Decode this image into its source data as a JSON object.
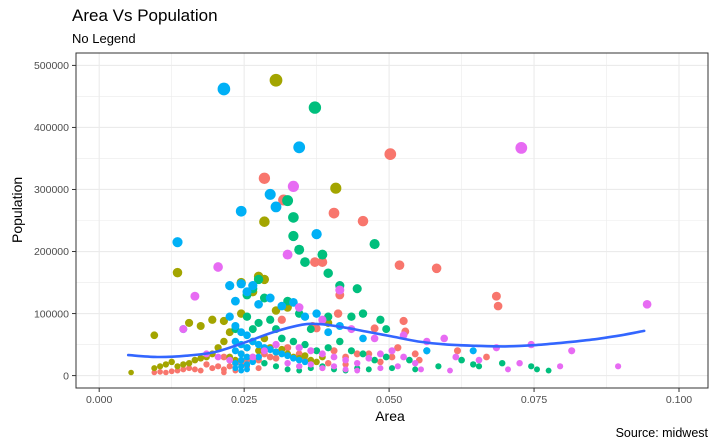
{
  "chart_data": {
    "type": "scatter",
    "title": "Area Vs Population",
    "subtitle": "No Legend",
    "caption": "Source: midwest",
    "xlabel": "Area",
    "ylabel": "Population",
    "xlim": [
      -0.004,
      0.105
    ],
    "ylim": [
      -20000,
      520000
    ],
    "x_ticks": [
      0.0,
      0.025,
      0.05,
      0.075,
      0.1
    ],
    "x_tick_labels": [
      "0.000",
      "0.025",
      "0.050",
      "0.075",
      "0.100"
    ],
    "y_ticks": [
      0,
      100000,
      200000,
      300000,
      400000,
      500000
    ],
    "y_tick_labels": [
      "0",
      "100000",
      "200000",
      "300000",
      "400000",
      "500000"
    ],
    "grid": true,
    "legend": "none",
    "colors": {
      "red": "#f8766d",
      "olive": "#a3a500",
      "green": "#00bf7d",
      "blue": "#00b0f6",
      "pink": "#e76bf3",
      "smooth": "#3366ff",
      "grid": "#ebebeb",
      "panel_border": "#333333"
    },
    "series": [
      {
        "group": "red",
        "points": [
          [
            0.0285,
            318000
          ],
          [
            0.0502,
            357000
          ],
          [
            0.0318,
            283000
          ],
          [
            0.0405,
            262000
          ],
          [
            0.0455,
            249000
          ],
          [
            0.0385,
            183000
          ],
          [
            0.0518,
            178000
          ],
          [
            0.0582,
            173000
          ],
          [
            0.0372,
            183000
          ],
          [
            0.0685,
            128000
          ],
          [
            0.0688,
            112000
          ],
          [
            0.0415,
            130000
          ],
          [
            0.0315,
            90000
          ],
          [
            0.0412,
            100000
          ],
          [
            0.0368,
            80000
          ],
          [
            0.0375,
            76000
          ],
          [
            0.0475,
            76000
          ],
          [
            0.0525,
            88000
          ],
          [
            0.0528,
            71000
          ],
          [
            0.0668,
            30000
          ],
          [
            0.0618,
            40000
          ],
          [
            0.0552,
            25000
          ],
          [
            0.0505,
            30000
          ],
          [
            0.0465,
            35000
          ],
          [
            0.0445,
            35000
          ],
          [
            0.0425,
            30000
          ],
          [
            0.0405,
            40000
          ],
          [
            0.0395,
            20000
          ],
          [
            0.0355,
            25000
          ],
          [
            0.0345,
            35000
          ],
          [
            0.0325,
            45000
          ],
          [
            0.0305,
            28000
          ],
          [
            0.0295,
            30000
          ],
          [
            0.0285,
            35000
          ],
          [
            0.0275,
            25000
          ],
          [
            0.0265,
            30000
          ],
          [
            0.0255,
            15000
          ],
          [
            0.0245,
            20000
          ],
          [
            0.0235,
            20000
          ],
          [
            0.0225,
            15000
          ],
          [
            0.0215,
            10000
          ],
          [
            0.0205,
            15000
          ],
          [
            0.0195,
            12000
          ],
          [
            0.0185,
            18000
          ],
          [
            0.0175,
            8000
          ],
          [
            0.0165,
            10000
          ],
          [
            0.0155,
            12000
          ],
          [
            0.0145,
            10000
          ],
          [
            0.0135,
            8000
          ],
          [
            0.0125,
            7000
          ],
          [
            0.0115,
            5000
          ],
          [
            0.0105,
            6000
          ],
          [
            0.0095,
            5000
          ],
          [
            0.0215,
            30000
          ],
          [
            0.0215,
            5000
          ],
          [
            0.0235,
            8000
          ],
          [
            0.0255,
            25000
          ],
          [
            0.0275,
            12000
          ],
          [
            0.0345,
            15000
          ],
          [
            0.0385,
            12000
          ],
          [
            0.0425,
            18000
          ],
          [
            0.0485,
            22000
          ],
          [
            0.0515,
            45000
          ],
          [
            0.0545,
            35000
          ]
        ]
      },
      {
        "group": "olive",
        "points": [
          [
            0.0305,
            476000
          ],
          [
            0.0408,
            302000
          ],
          [
            0.0285,
            248000
          ],
          [
            0.0275,
            160000
          ],
          [
            0.0135,
            166000
          ],
          [
            0.0095,
            65000
          ],
          [
            0.0055,
            5000
          ],
          [
            0.0155,
            85000
          ],
          [
            0.0175,
            80000
          ],
          [
            0.0195,
            90000
          ],
          [
            0.0245,
            100000
          ],
          [
            0.0265,
            135000
          ],
          [
            0.0285,
            155000
          ],
          [
            0.0245,
            150000
          ],
          [
            0.0225,
            70000
          ],
          [
            0.0215,
            55000
          ],
          [
            0.0205,
            45000
          ],
          [
            0.0195,
            35000
          ],
          [
            0.0185,
            30000
          ],
          [
            0.0175,
            28000
          ],
          [
            0.0165,
            25000
          ],
          [
            0.0155,
            20000
          ],
          [
            0.0145,
            18000
          ],
          [
            0.0135,
            15000
          ],
          [
            0.0125,
            22000
          ],
          [
            0.0115,
            18000
          ],
          [
            0.0105,
            15000
          ],
          [
            0.0095,
            12000
          ],
          [
            0.0225,
            30000
          ],
          [
            0.0235,
            25000
          ],
          [
            0.0245,
            35000
          ],
          [
            0.0255,
            45000
          ],
          [
            0.0265,
            55000
          ],
          [
            0.0275,
            40000
          ],
          [
            0.0285,
            60000
          ],
          [
            0.0295,
            45000
          ],
          [
            0.0305,
            38000
          ],
          [
            0.0315,
            42000
          ],
          [
            0.0325,
            35000
          ],
          [
            0.0335,
            30000
          ],
          [
            0.0345,
            28000
          ],
          [
            0.0355,
            32000
          ],
          [
            0.0365,
            25000
          ],
          [
            0.0375,
            22000
          ],
          [
            0.0385,
            30000
          ],
          [
            0.0215,
            88000
          ],
          [
            0.0305,
            105000
          ],
          [
            0.0325,
            110000
          ],
          [
            0.0395,
            85000
          ]
        ]
      },
      {
        "group": "green",
        "points": [
          [
            0.0372,
            432000
          ],
          [
            0.0325,
            282000
          ],
          [
            0.0335,
            255000
          ],
          [
            0.0335,
            225000
          ],
          [
            0.0475,
            212000
          ],
          [
            0.0345,
            203000
          ],
          [
            0.0355,
            183000
          ],
          [
            0.0415,
            145000
          ],
          [
            0.0395,
            165000
          ],
          [
            0.0385,
            195000
          ],
          [
            0.0445,
            140000
          ],
          [
            0.0275,
            155000
          ],
          [
            0.0265,
            140000
          ],
          [
            0.0255,
            130000
          ],
          [
            0.0285,
            125000
          ],
          [
            0.0325,
            120000
          ],
          [
            0.0345,
            100000
          ],
          [
            0.0395,
            95000
          ],
          [
            0.0435,
            95000
          ],
          [
            0.0455,
            100000
          ],
          [
            0.0485,
            90000
          ],
          [
            0.0495,
            75000
          ],
          [
            0.0365,
            75000
          ],
          [
            0.0305,
            75000
          ],
          [
            0.0295,
            90000
          ],
          [
            0.0275,
            85000
          ],
          [
            0.0265,
            75000
          ],
          [
            0.0255,
            95000
          ],
          [
            0.0235,
            75000
          ],
          [
            0.0315,
            60000
          ],
          [
            0.0335,
            55000
          ],
          [
            0.0355,
            50000
          ],
          [
            0.0375,
            40000
          ],
          [
            0.0395,
            45000
          ],
          [
            0.0415,
            55000
          ],
          [
            0.0435,
            40000
          ],
          [
            0.0455,
            35000
          ],
          [
            0.0475,
            25000
          ],
          [
            0.0495,
            30000
          ],
          [
            0.0535,
            25000
          ],
          [
            0.0565,
            40000
          ],
          [
            0.0625,
            25000
          ],
          [
            0.0655,
            15000
          ],
          [
            0.0695,
            20000
          ],
          [
            0.0745,
            15000
          ],
          [
            0.0755,
            10000
          ],
          [
            0.0775,
            8000
          ],
          [
            0.0285,
            20000
          ],
          [
            0.0305,
            15000
          ],
          [
            0.0325,
            10000
          ],
          [
            0.0345,
            8000
          ],
          [
            0.0365,
            12000
          ],
          [
            0.0385,
            15000
          ],
          [
            0.0405,
            10000
          ],
          [
            0.0425,
            8000
          ],
          [
            0.0445,
            12000
          ],
          [
            0.0465,
            10000
          ],
          [
            0.0505,
            12000
          ],
          [
            0.0545,
            10000
          ],
          [
            0.0585,
            15000
          ],
          [
            0.0645,
            18000
          ]
        ]
      },
      {
        "group": "blue",
        "points": [
          [
            0.0215,
            462000
          ],
          [
            0.0345,
            368000
          ],
          [
            0.0295,
            292000
          ],
          [
            0.0305,
            272000
          ],
          [
            0.0245,
            265000
          ],
          [
            0.0375,
            228000
          ],
          [
            0.0135,
            215000
          ],
          [
            0.0245,
            148000
          ],
          [
            0.0265,
            145000
          ],
          [
            0.0225,
            145000
          ],
          [
            0.0255,
            135000
          ],
          [
            0.0235,
            120000
          ],
          [
            0.0275,
            115000
          ],
          [
            0.0295,
            125000
          ],
          [
            0.0315,
            112000
          ],
          [
            0.0335,
            118000
          ],
          [
            0.0355,
            95000
          ],
          [
            0.0375,
            100000
          ],
          [
            0.0145,
            75000
          ],
          [
            0.0225,
            95000
          ],
          [
            0.0235,
            80000
          ],
          [
            0.0245,
            70000
          ],
          [
            0.0255,
            65000
          ],
          [
            0.0265,
            55000
          ],
          [
            0.0275,
            50000
          ],
          [
            0.0285,
            45000
          ],
          [
            0.0295,
            42000
          ],
          [
            0.0305,
            38000
          ],
          [
            0.0315,
            35000
          ],
          [
            0.0325,
            32000
          ],
          [
            0.0335,
            28000
          ],
          [
            0.0345,
            25000
          ],
          [
            0.0355,
            22000
          ],
          [
            0.0235,
            55000
          ],
          [
            0.0245,
            50000
          ],
          [
            0.0255,
            45000
          ],
          [
            0.0235,
            40000
          ],
          [
            0.0245,
            35000
          ],
          [
            0.0255,
            30000
          ],
          [
            0.0245,
            25000
          ],
          [
            0.0235,
            20000
          ],
          [
            0.0255,
            18000
          ],
          [
            0.0245,
            15000
          ],
          [
            0.0235,
            12000
          ],
          [
            0.0255,
            10000
          ],
          [
            0.0245,
            8000
          ],
          [
            0.0225,
            25000
          ],
          [
            0.0265,
            22000
          ],
          [
            0.0275,
            30000
          ],
          [
            0.0395,
            70000
          ],
          [
            0.0415,
            80000
          ],
          [
            0.0455,
            60000
          ],
          [
            0.0565,
            40000
          ],
          [
            0.0645,
            40000
          ]
        ]
      },
      {
        "group": "pink",
        "points": [
          [
            0.0728,
            367000
          ],
          [
            0.0335,
            305000
          ],
          [
            0.0325,
            195000
          ],
          [
            0.0205,
            175000
          ],
          [
            0.0165,
            128000
          ],
          [
            0.0945,
            115000
          ],
          [
            0.0345,
            110000
          ],
          [
            0.0415,
            138000
          ],
          [
            0.0385,
            90000
          ],
          [
            0.0435,
            75000
          ],
          [
            0.0475,
            60000
          ],
          [
            0.0525,
            65000
          ],
          [
            0.0565,
            55000
          ],
          [
            0.0595,
            60000
          ],
          [
            0.0685,
            45000
          ],
          [
            0.0745,
            50000
          ],
          [
            0.0815,
            40000
          ],
          [
            0.0145,
            75000
          ],
          [
            0.0185,
            35000
          ],
          [
            0.0205,
            30000
          ],
          [
            0.0225,
            25000
          ],
          [
            0.0265,
            30000
          ],
          [
            0.0285,
            40000
          ],
          [
            0.0305,
            50000
          ],
          [
            0.0345,
            45000
          ],
          [
            0.0365,
            40000
          ],
          [
            0.0385,
            35000
          ],
          [
            0.0405,
            30000
          ],
          [
            0.0425,
            25000
          ],
          [
            0.0445,
            20000
          ],
          [
            0.0465,
            28000
          ],
          [
            0.0485,
            35000
          ],
          [
            0.0505,
            40000
          ],
          [
            0.0525,
            30000
          ],
          [
            0.0545,
            20000
          ],
          [
            0.0615,
            30000
          ],
          [
            0.0655,
            25000
          ],
          [
            0.0725,
            20000
          ],
          [
            0.0795,
            15000
          ],
          [
            0.0895,
            15000
          ],
          [
            0.0325,
            20000
          ],
          [
            0.0345,
            15000
          ],
          [
            0.0365,
            18000
          ],
          [
            0.0385,
            12000
          ],
          [
            0.0405,
            15000
          ],
          [
            0.0425,
            10000
          ],
          [
            0.0445,
            8000
          ],
          [
            0.0485,
            12000
          ],
          [
            0.0515,
            15000
          ],
          [
            0.0555,
            10000
          ],
          [
            0.0605,
            8000
          ],
          [
            0.0705,
            10000
          ]
        ]
      }
    ],
    "smooth_line": [
      [
        0.005,
        33000
      ],
      [
        0.01,
        30000
      ],
      [
        0.015,
        32000
      ],
      [
        0.02,
        38000
      ],
      [
        0.025,
        53000
      ],
      [
        0.03,
        70000
      ],
      [
        0.035,
        82000
      ],
      [
        0.038,
        83000
      ],
      [
        0.042,
        78000
      ],
      [
        0.046,
        71000
      ],
      [
        0.05,
        64000
      ],
      [
        0.055,
        55000
      ],
      [
        0.06,
        50000
      ],
      [
        0.065,
        48000
      ],
      [
        0.07,
        47000
      ],
      [
        0.075,
        49000
      ],
      [
        0.08,
        53000
      ],
      [
        0.085,
        58000
      ],
      [
        0.09,
        65000
      ],
      [
        0.094,
        72000
      ]
    ]
  }
}
